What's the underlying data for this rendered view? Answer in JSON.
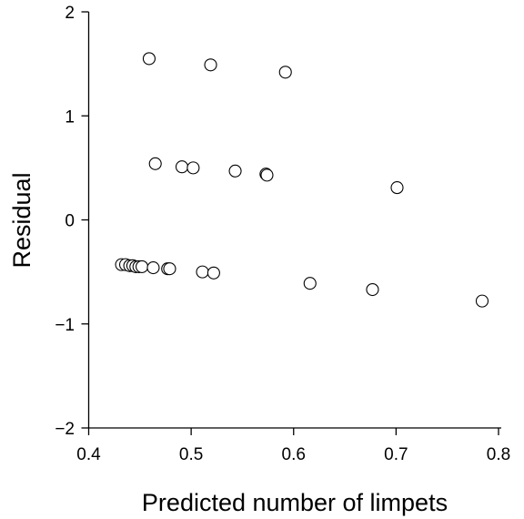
{
  "chart_data": {
    "type": "scatter",
    "title": "",
    "xlabel": "Predicted number of limpets",
    "ylabel": "Residual",
    "xlim": [
      0.4,
      0.8
    ],
    "ylim": [
      -2,
      2
    ],
    "x_ticks": [
      0.4,
      0.5,
      0.6,
      0.7,
      0.8
    ],
    "x_tick_labels": [
      "0.4",
      "0.5",
      "0.6",
      "0.7",
      "0.8"
    ],
    "y_ticks": [
      -2,
      -1,
      0,
      1,
      2
    ],
    "y_tick_labels": [
      "−2",
      "−1",
      "0",
      "1",
      "2"
    ],
    "grid": false,
    "legend": "none",
    "marker": "open-circle",
    "points": [
      {
        "x": 0.459,
        "y": 1.55
      },
      {
        "x": 0.519,
        "y": 1.49
      },
      {
        "x": 0.592,
        "y": 1.42
      },
      {
        "x": 0.465,
        "y": 0.54
      },
      {
        "x": 0.491,
        "y": 0.51
      },
      {
        "x": 0.502,
        "y": 0.5
      },
      {
        "x": 0.543,
        "y": 0.47
      },
      {
        "x": 0.573,
        "y": 0.44
      },
      {
        "x": 0.574,
        "y": 0.43
      },
      {
        "x": 0.701,
        "y": 0.31
      },
      {
        "x": 0.432,
        "y": -0.43
      },
      {
        "x": 0.436,
        "y": -0.43
      },
      {
        "x": 0.44,
        "y": -0.44
      },
      {
        "x": 0.443,
        "y": -0.44
      },
      {
        "x": 0.446,
        "y": -0.45
      },
      {
        "x": 0.449,
        "y": -0.45
      },
      {
        "x": 0.452,
        "y": -0.45
      },
      {
        "x": 0.463,
        "y": -0.46
      },
      {
        "x": 0.477,
        "y": -0.47
      },
      {
        "x": 0.479,
        "y": -0.47
      },
      {
        "x": 0.511,
        "y": -0.5
      },
      {
        "x": 0.522,
        "y": -0.51
      },
      {
        "x": 0.616,
        "y": -0.61
      },
      {
        "x": 0.677,
        "y": -0.67
      },
      {
        "x": 0.784,
        "y": -0.78
      }
    ]
  }
}
